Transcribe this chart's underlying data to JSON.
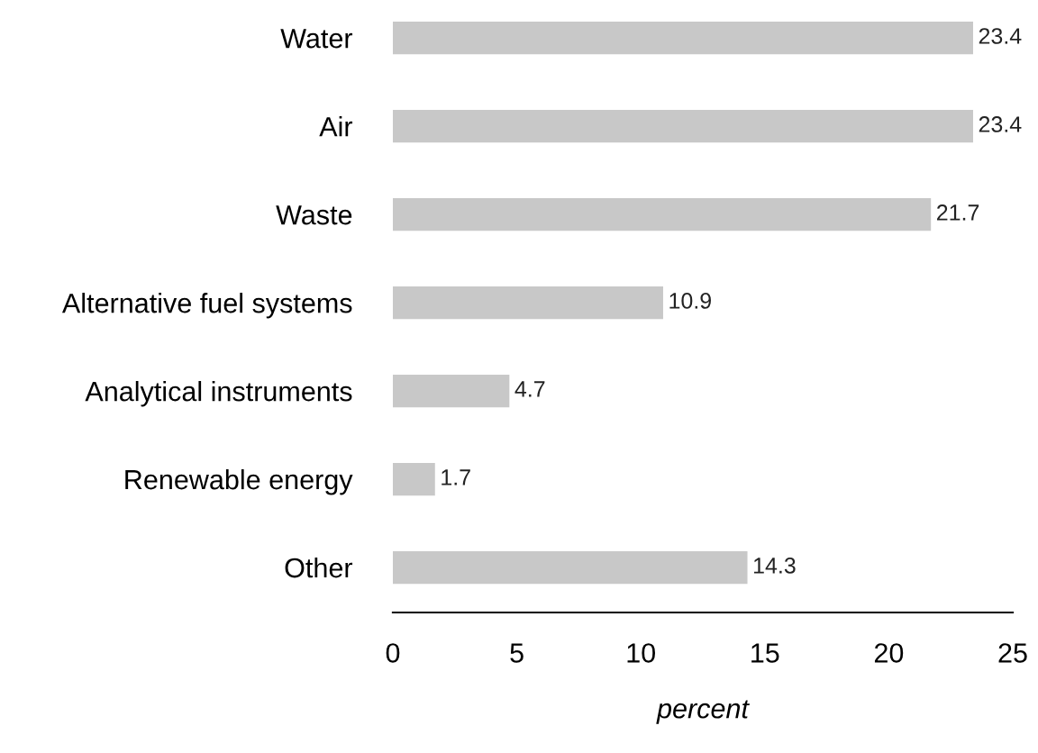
{
  "chart_data": {
    "type": "bar",
    "orientation": "horizontal",
    "xlabel": "percent",
    "categories": [
      "Water",
      "Air",
      "Waste",
      "Alternative fuel systems",
      "Analytical instruments",
      "Renewable energy",
      "Other"
    ],
    "values": [
      23.4,
      23.4,
      21.7,
      10.9,
      4.7,
      1.7,
      14.3
    ],
    "color": "#c8c8c8",
    "xlim": [
      0,
      25
    ],
    "xticks": [
      0,
      5,
      10,
      15,
      20,
      25
    ],
    "data_labels": true,
    "grid": false,
    "legend": false
  }
}
